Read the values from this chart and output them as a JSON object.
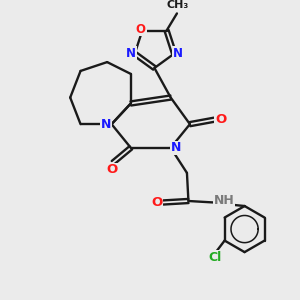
{
  "background_color": "#ebebeb",
  "bond_color": "#1a1a1a",
  "figsize": [
    3.0,
    3.0
  ],
  "dpi": 100,
  "atom_colors": {
    "N": "#1a1aff",
    "O": "#ff1a1a",
    "Cl": "#22aa22",
    "H": "#7a7a7a",
    "C": "#1a1a1a"
  },
  "xlim": [
    0,
    10
  ],
  "ylim": [
    0,
    10
  ]
}
